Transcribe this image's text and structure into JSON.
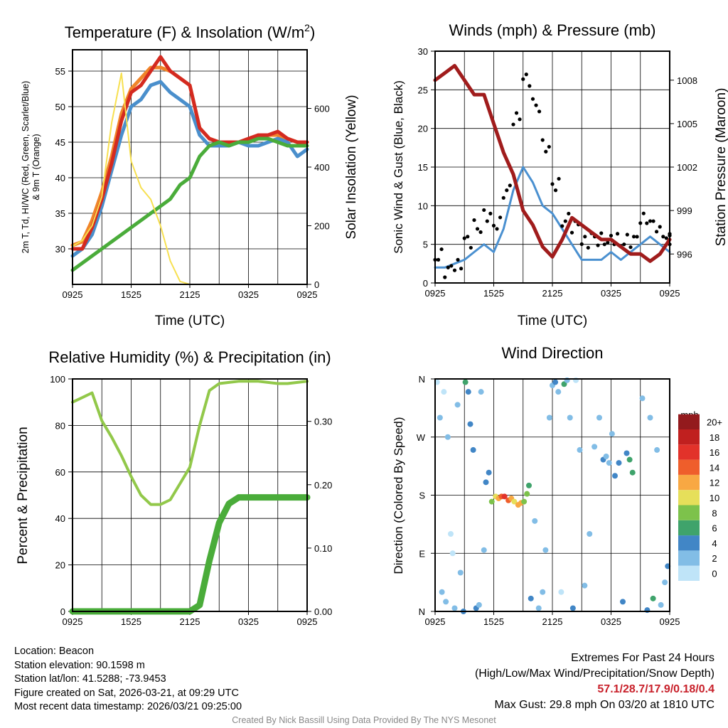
{
  "colors": {
    "temp": "#d42a20",
    "dew": "#4aac3a",
    "hiwc": "#4a8fcc",
    "t9m": "#f0852a",
    "solar": "#f7e050",
    "wind": "#4a90d0",
    "gust": "#000000",
    "pressure": "#a01c1c",
    "rh": "#92c84a",
    "precip": "#4aac3a"
  },
  "chart_data": [
    {
      "type": "line",
      "title": "Temperature (F) & Insolation (W/m²)",
      "title_main": "Temperature (F) & Insolation (W/m",
      "title_sup": "2",
      "title_end": ")",
      "xlabel": "Time (UTC)",
      "ylabel": "2m T, Td, HI/WC (Red, Green, Scarlet/Blue)",
      "ylabel2": "& 9m T (Orange)",
      "y2label": "Solar Insolation (Yellow)",
      "xticks": [
        "0925",
        "1525",
        "2125",
        "0325",
        "0925"
      ],
      "ylim": [
        25,
        58
      ],
      "yticks": [
        30,
        35,
        40,
        45,
        50,
        55
      ],
      "y2lim": [
        0,
        800
      ],
      "y2ticks": [
        0,
        200,
        400,
        600
      ],
      "x": [
        0,
        1,
        2,
        3,
        4,
        5,
        6,
        7,
        8,
        9,
        10,
        11,
        12,
        13,
        14,
        15,
        16,
        17,
        18,
        19,
        20,
        21,
        22,
        23,
        24
      ],
      "series": [
        {
          "name": "9m T",
          "color": "t9m",
          "axis": "left",
          "values": [
            30.5,
            31,
            34,
            38,
            43,
            49,
            52.5,
            54,
            55.5,
            55.5,
            55,
            54,
            53,
            47,
            45.5,
            45,
            45,
            45,
            45,
            46,
            46,
            46,
            45.5,
            45,
            45
          ]
        },
        {
          "name": "HI/WC",
          "color": "hiwc",
          "axis": "left",
          "values": [
            29,
            30,
            32,
            36,
            41,
            46,
            50,
            51,
            53,
            53.5,
            52,
            51,
            50,
            46,
            44.5,
            44.5,
            44.5,
            45,
            44.5,
            44.5,
            45,
            45.5,
            45,
            43,
            44
          ]
        },
        {
          "name": "2m T",
          "color": "temp",
          "axis": "left",
          "values": [
            30,
            30,
            33,
            37,
            42,
            48,
            52,
            53,
            55,
            57,
            55,
            54,
            53,
            47,
            45.5,
            45,
            45,
            45,
            45.5,
            46,
            46,
            46.5,
            45.5,
            45,
            45
          ]
        },
        {
          "name": "2m Td",
          "color": "dew",
          "axis": "left",
          "values": [
            27,
            28,
            29,
            30,
            31,
            32,
            33,
            34,
            35,
            36,
            37,
            39,
            40,
            43,
            44.5,
            45,
            44.5,
            45,
            45,
            45.5,
            45.5,
            45,
            44.5,
            44.5,
            44.5
          ]
        },
        {
          "name": "Solar Insolation",
          "color": "solar",
          "axis": "right",
          "values": [
            130,
            150,
            200,
            300,
            550,
            720,
            420,
            330,
            290,
            200,
            80,
            10,
            0,
            0,
            0,
            0,
            0,
            0,
            0,
            0,
            0,
            0,
            0,
            0,
            0
          ]
        }
      ]
    },
    {
      "type": "line",
      "title": "Winds (mph) & Pressure (mb)",
      "xlabel": "Time (UTC)",
      "ylabel": "Sonic Wind & Gust (Blue, Black)",
      "y2label": "Station Pressure (Maroon)",
      "xticks": [
        "0925",
        "1525",
        "2125",
        "0325",
        "0925"
      ],
      "ylim": [
        0,
        30
      ],
      "yticks": [
        0,
        5,
        10,
        15,
        20,
        25,
        30
      ],
      "y2lim": [
        994,
        1010
      ],
      "y2ticks": [
        996,
        999,
        1002,
        1005,
        1008
      ],
      "x": [
        0,
        1,
        2,
        3,
        4,
        5,
        6,
        7,
        8,
        9,
        10,
        11,
        12,
        13,
        14,
        15,
        16,
        17,
        18,
        19,
        20,
        21,
        22,
        23,
        24
      ],
      "series": [
        {
          "name": "Sonic Wind",
          "color": "wind",
          "axis": "left",
          "kind": "line",
          "values": [
            2,
            2,
            2.5,
            3,
            4,
            5,
            4,
            7,
            12,
            15,
            13,
            10,
            9,
            7,
            5,
            3,
            3,
            3,
            4,
            3,
            4,
            5,
            6,
            5,
            4
          ]
        },
        {
          "name": "Gust",
          "color": "gust",
          "axis": "left",
          "kind": "dots",
          "values": [
            3,
            2,
            3,
            6,
            7,
            8,
            7,
            12,
            22,
            27,
            23,
            17,
            12,
            8,
            8,
            6,
            6,
            5,
            5,
            5,
            6,
            9,
            8,
            6,
            5
          ]
        },
        {
          "name": "Station Pressure",
          "color": "pressure",
          "axis": "right",
          "kind": "line",
          "values": [
            1008,
            1008.5,
            1009,
            1008,
            1007,
            1007,
            1005,
            1003,
            1001.5,
            999,
            998,
            996.5,
            995.8,
            997,
            998.5,
            998,
            997.5,
            997,
            997,
            996.5,
            996,
            996,
            995.5,
            996,
            997
          ]
        }
      ]
    },
    {
      "type": "line",
      "title": "Relative Humidity (%) & Precipitation (in)",
      "xlabel": "",
      "ylabel": "Percent & Precipitation",
      "xticks": [
        "0925",
        "1525",
        "2125",
        "0325",
        "0925"
      ],
      "ylim": [
        0,
        100
      ],
      "yticks": [
        0,
        20,
        40,
        60,
        80,
        100
      ],
      "y2lim": [
        0,
        0.367
      ],
      "y2ticks": [
        "0.00",
        "0.10",
        "0.20",
        "0.30"
      ],
      "x": [
        0,
        1,
        2,
        3,
        4,
        5,
        6,
        7,
        8,
        9,
        10,
        11,
        12,
        13,
        14,
        15,
        16,
        17,
        18,
        19,
        20,
        21,
        22,
        23,
        24
      ],
      "series": [
        {
          "name": "Relative Humidity",
          "color": "rh",
          "axis": "left",
          "values": [
            90,
            92,
            94,
            82,
            75,
            67,
            58,
            50,
            46,
            46,
            48,
            55,
            62,
            80,
            95,
            98,
            98.5,
            99,
            99,
            99,
            98.5,
            98,
            98,
            98.5,
            99
          ]
        },
        {
          "name": "Precipitation",
          "color": "precip",
          "axis": "right",
          "values": [
            0,
            0,
            0,
            0,
            0,
            0,
            0,
            0,
            0,
            0,
            0,
            0,
            0,
            0.01,
            0.08,
            0.14,
            0.17,
            0.18,
            0.18,
            0.18,
            0.18,
            0.18,
            0.18,
            0.18,
            0.18
          ]
        }
      ]
    },
    {
      "type": "scatter",
      "title": "Wind Direction",
      "ylabel": "Direction (Colored By Speed)",
      "xticks": [
        "0925",
        "1525",
        "2125",
        "0325",
        "0925"
      ],
      "yticks": [
        "N",
        "E",
        "S",
        "W",
        "N"
      ],
      "ylim": [
        0,
        360
      ],
      "colorbar": {
        "title": "mph",
        "labels": [
          "0",
          "2",
          "4",
          "6",
          "8",
          "10",
          "12",
          "14",
          "16",
          "18",
          "20+"
        ],
        "colors": [
          "#bfe4f8",
          "#82bde6",
          "#4186c6",
          "#3fa36b",
          "#7dc24b",
          "#e6df5a",
          "#f8a843",
          "#ef5e2b",
          "#e2322a",
          "#c0201f",
          "#931a1d"
        ]
      },
      "points": [
        [
          0.2,
          355,
          1
        ],
        [
          0.5,
          300,
          3
        ],
        [
          0.7,
          30,
          2
        ],
        [
          0.9,
          340,
          1
        ],
        [
          1.1,
          15,
          3
        ],
        [
          1.3,
          270,
          2
        ],
        [
          1.6,
          120,
          1
        ],
        [
          1.8,
          90,
          1
        ],
        [
          2,
          5,
          2
        ],
        [
          2.3,
          320,
          2
        ],
        [
          2.6,
          60,
          3
        ],
        [
          2.9,
          0,
          4
        ],
        [
          3.1,
          355,
          6
        ],
        [
          3.4,
          340,
          5
        ],
        [
          3.6,
          290,
          4
        ],
        [
          3.9,
          250,
          4
        ],
        [
          4.2,
          5,
          4
        ],
        [
          4.5,
          10,
          3
        ],
        [
          4.7,
          340,
          2
        ],
        [
          5,
          95,
          3
        ],
        [
          5.2,
          200,
          4
        ],
        [
          5.5,
          215,
          4
        ],
        [
          5.8,
          170,
          8
        ],
        [
          6.2,
          178,
          10
        ],
        [
          6.5,
          175,
          12
        ],
        [
          6.8,
          178,
          14
        ],
        [
          7.1,
          178,
          16
        ],
        [
          7.5,
          172,
          14
        ],
        [
          7.8,
          175,
          12
        ],
        [
          8.1,
          170,
          10
        ],
        [
          8.5,
          165,
          13
        ],
        [
          8.8,
          168,
          12
        ],
        [
          9.1,
          170,
          8
        ],
        [
          9.4,
          182,
          9
        ],
        [
          9.6,
          195,
          6
        ],
        [
          9.8,
          20,
          4
        ],
        [
          10.2,
          140,
          3
        ],
        [
          10.6,
          5,
          2
        ],
        [
          11,
          30,
          2
        ],
        [
          11.3,
          95,
          2
        ],
        [
          11.7,
          300,
          3
        ],
        [
          12,
          350,
          3
        ],
        [
          12.3,
          355,
          5
        ],
        [
          12.6,
          340,
          2
        ],
        [
          12.9,
          30,
          1
        ],
        [
          13.2,
          352,
          6
        ],
        [
          13.5,
          358,
          3
        ],
        [
          13.8,
          300,
          2
        ],
        [
          14.1,
          5,
          4
        ],
        [
          14.4,
          358,
          1
        ],
        [
          14.8,
          250,
          2
        ],
        [
          15.3,
          40,
          3
        ],
        [
          15.8,
          120,
          2
        ],
        [
          16.3,
          255,
          3
        ],
        [
          16.8,
          300,
          3
        ],
        [
          17.2,
          235,
          4
        ],
        [
          17.5,
          240,
          3
        ],
        [
          17.8,
          230,
          2
        ],
        [
          18.1,
          275,
          3
        ],
        [
          18.4,
          210,
          4
        ],
        [
          18.8,
          230,
          4
        ],
        [
          19.2,
          15,
          4
        ],
        [
          19.6,
          245,
          5
        ],
        [
          19.9,
          235,
          6
        ],
        [
          20.2,
          215,
          6
        ],
        [
          21.2,
          330,
          2
        ],
        [
          21.7,
          2,
          4
        ],
        [
          22,
          300,
          3
        ],
        [
          22.3,
          20,
          6
        ],
        [
          22.7,
          250,
          2
        ],
        [
          23.1,
          10,
          3
        ],
        [
          23.5,
          45,
          2
        ],
        [
          23.8,
          70,
          5
        ]
      ]
    }
  ],
  "footer": {
    "location": "Location: Beacon",
    "elevation": "Station elevation: 90.1598 m",
    "latlon": "Station lat/lon: 41.5288; -73.9453",
    "created": "Figure created on Sat, 2026-03-21, at 09:29 UTC",
    "recent": "Most recent data timestamp: 2026/03/21 09:25:00",
    "extremes_title": "Extremes For Past 24 Hours",
    "extremes_legend": "(High/Low/Max Wind/Precipitation/Snow Depth)",
    "extremes_values": "57.1/28.7/17.9/0.18/0.4",
    "max_gust": "Max Gust: 29.8 mph On 03/20 at 1810 UTC",
    "credit": "Created By Nick Bassill Using Data Provided By The NYS Mesonet"
  }
}
